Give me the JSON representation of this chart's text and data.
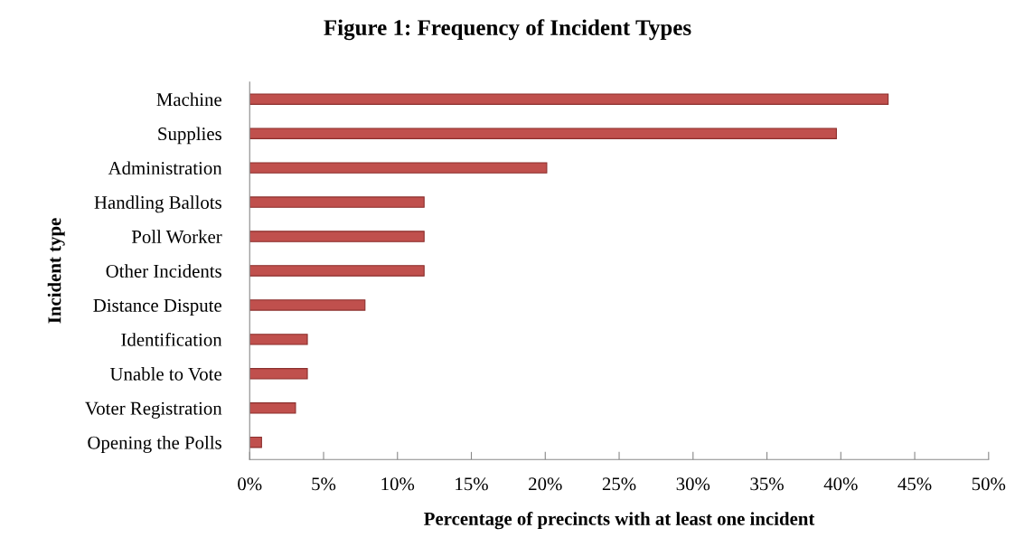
{
  "chart_data": {
    "type": "bar",
    "orientation": "horizontal",
    "title": "Figure 1: Frequency of Incident Types",
    "xlabel": "Percentage of precincts with at least one incident",
    "ylabel": "Incident type",
    "categories": [
      "Machine",
      "Supplies",
      "Administration",
      "Handling Ballots",
      "Poll Worker",
      "Other Incidents",
      "Distance Dispute",
      "Identification",
      "Unable to Vote",
      "Voter Registration",
      "Opening the Polls"
    ],
    "values": [
      43.2,
      39.7,
      20.1,
      11.8,
      11.8,
      11.8,
      7.8,
      3.9,
      3.9,
      3.1,
      0.8
    ],
    "color": "#c0504d",
    "xlim": [
      0,
      50
    ],
    "xticks": [
      {
        "value": 0,
        "label": "0%"
      },
      {
        "value": 5,
        "label": "5%"
      },
      {
        "value": 10,
        "label": "10%"
      },
      {
        "value": 15,
        "label": "15%"
      },
      {
        "value": 20,
        "label": "20%"
      },
      {
        "value": 25,
        "label": "25%"
      },
      {
        "value": 30,
        "label": "30%"
      },
      {
        "value": 35,
        "label": "35%"
      },
      {
        "value": 40,
        "label": "40%"
      },
      {
        "value": 45,
        "label": "45%"
      },
      {
        "value": 50,
        "label": "50%"
      }
    ],
    "grid": false,
    "legend": false
  }
}
